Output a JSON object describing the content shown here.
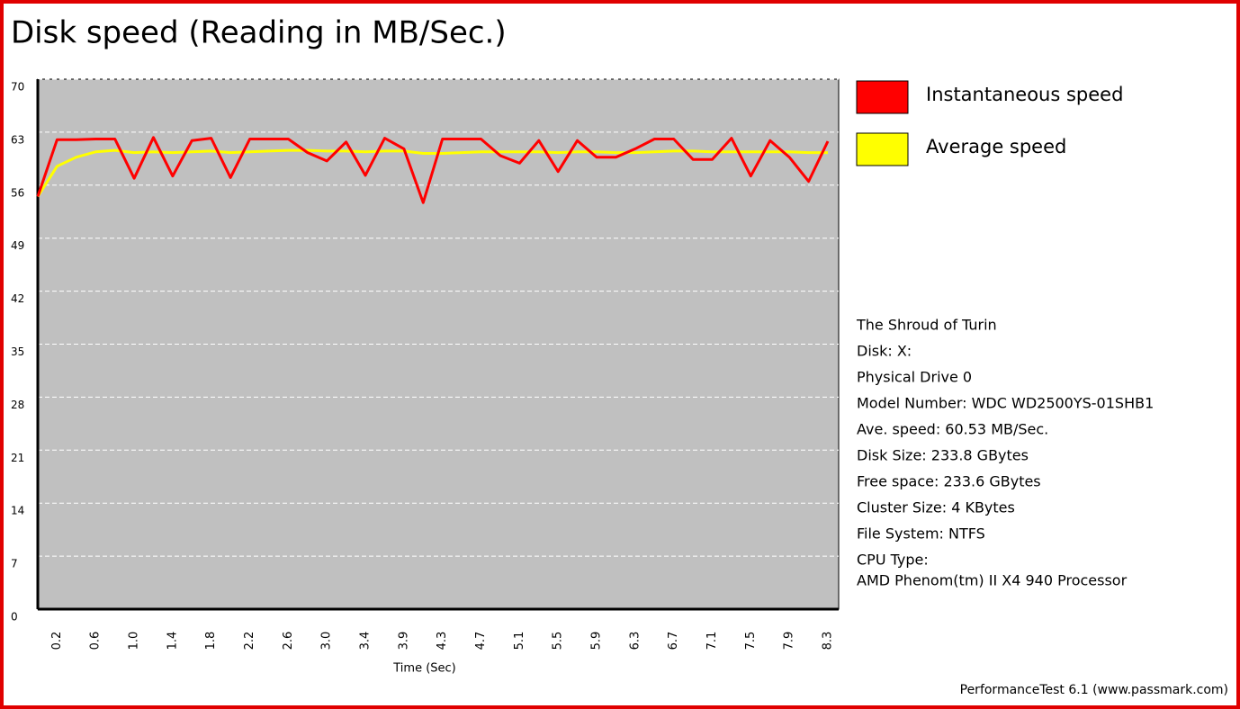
{
  "chart_data": {
    "type": "line",
    "title": "Disk speed (Reading in MB/Sec.)",
    "x_label": "Time (Sec)",
    "categories": [
      null,
      "0.2",
      null,
      "0.6",
      null,
      "1.0",
      null,
      "1.4",
      null,
      "1.8",
      null,
      "2.2",
      null,
      "2.6",
      null,
      "3.0",
      null,
      "3.4",
      null,
      "3.9",
      null,
      "4.3",
      null,
      "4.7",
      null,
      "5.1",
      null,
      "5.5",
      null,
      "5.9",
      null,
      "6.3",
      null,
      "6.7",
      null,
      "7.1",
      null,
      "7.5",
      null,
      "7.9",
      null,
      "8.3"
    ],
    "series": [
      {
        "name": "Instantaneous speed",
        "color": "#ff0000",
        "values": [
          54.5,
          62.0,
          62.0,
          62.1,
          62.1,
          56.9,
          62.3,
          57.2,
          61.9,
          62.2,
          57.0,
          62.1,
          62.1,
          62.1,
          60.3,
          59.2,
          61.7,
          57.3,
          62.2,
          60.8,
          53.7,
          62.1,
          62.1,
          62.1,
          59.9,
          58.9,
          61.9,
          57.8,
          61.9,
          59.7,
          59.7,
          60.8,
          62.1,
          62.1,
          59.4,
          59.4,
          62.2,
          57.2,
          61.9,
          59.7,
          56.5,
          61.8
        ]
      },
      {
        "name": "Average speed",
        "color": "#ffff00",
        "values": [
          54.5,
          58.5,
          59.7,
          60.4,
          60.6,
          60.3,
          60.4,
          60.3,
          60.4,
          60.5,
          60.3,
          60.4,
          60.5,
          60.6,
          60.6,
          60.5,
          60.5,
          60.4,
          60.5,
          60.5,
          60.2,
          60.2,
          60.3,
          60.4,
          60.4,
          60.4,
          60.4,
          60.3,
          60.4,
          60.4,
          60.3,
          60.3,
          60.4,
          60.5,
          60.5,
          60.4,
          60.4,
          60.4,
          60.4,
          60.4,
          60.3,
          60.3
        ]
      }
    ],
    "ylim": [
      0,
      70
    ],
    "yticks": [
      0,
      7,
      14,
      21,
      28,
      35,
      42,
      49,
      56,
      63,
      70
    ],
    "grid": true,
    "legend": "right",
    "info": [
      "The Shroud of Turin",
      "Disk: X:",
      "Physical Drive 0",
      "Model Number: WDC WD2500YS-01SHB1",
      "Ave. speed: 60.53 MB/Sec.",
      "Disk Size: 233.8 GBytes",
      "Free space: 233.6 GBytes",
      "Cluster Size: 4 KBytes",
      "File System: NTFS",
      "CPU Type:",
      "AMD Phenom(tm) II X4 940 Processor"
    ],
    "footer": "PerformanceTest 6.1 (www.passmark.com)"
  }
}
